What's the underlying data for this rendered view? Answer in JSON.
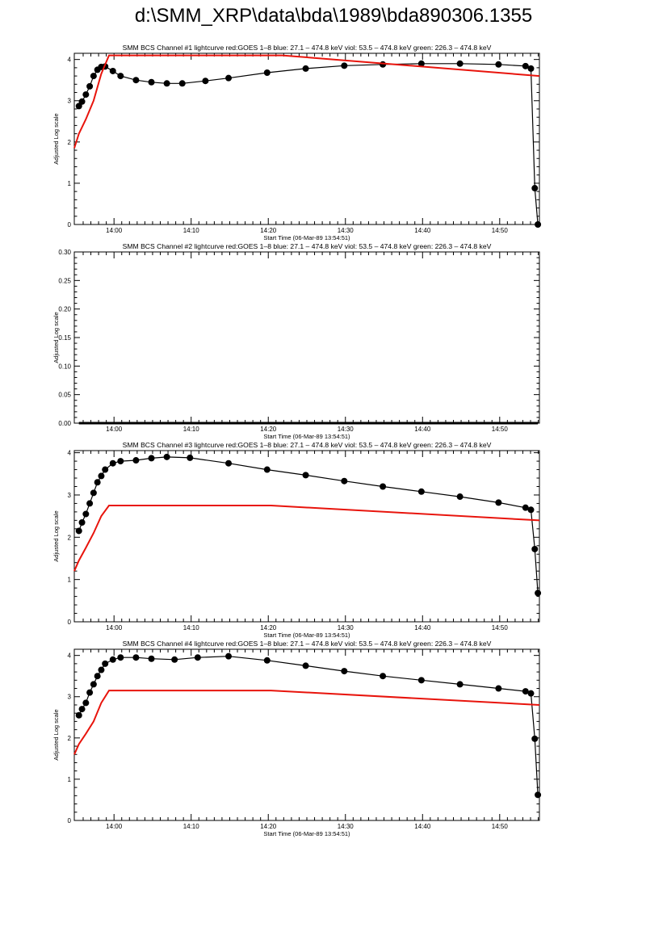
{
  "page_title": "d:\\SMM_XRP\\data\\bda\\1989\\bda890306.1355",
  "colors": {
    "background": "#ffffff",
    "axes": "#000000",
    "data": "#000000",
    "goes": "#e8140c"
  },
  "chart_data": [
    {
      "type": "scatter",
      "title": "SMM BCS Channel #1 lightcurve  red:GOES 1–8  blue: 27.1 – 474.8 keV  viol: 53.5 – 474.8 keV  green: 226.3 – 474.8 keV",
      "xlabel": "Start Time (06-Mar-89 13:54:51)",
      "ylabel": "Adjusted Log scale",
      "x_unit": "minutes after 13:54:51",
      "xlim": [
        0,
        60.3
      ],
      "ylim": [
        0,
        4.15
      ],
      "x_ticks": [
        "14:00",
        "14:10",
        "14:20",
        "14:30",
        "14:40",
        "14:50"
      ],
      "y_ticks": [
        "0",
        "1",
        "2",
        "3",
        "4"
      ],
      "series": [
        {
          "color": "black",
          "style": "dots",
          "x": [
            0.6,
            1,
            1.5,
            2,
            2.5,
            3,
            3.5,
            4,
            5,
            6,
            8,
            10,
            12,
            14,
            17,
            20,
            25,
            30,
            35,
            40,
            45,
            50,
            55,
            58.5,
            59.2,
            59.7,
            60.1
          ],
          "y": [
            2.87,
            2.98,
            3.15,
            3.35,
            3.6,
            3.75,
            3.82,
            3.83,
            3.72,
            3.6,
            3.5,
            3.45,
            3.42,
            3.42,
            3.48,
            3.55,
            3.68,
            3.78,
            3.85,
            3.88,
            3.9,
            3.9,
            3.88,
            3.84,
            3.78,
            0.88,
            0
          ]
        },
        {
          "color": "red",
          "style": "line",
          "x": [
            0,
            0.6,
            1.5,
            2.5,
            3.5,
            4.5,
            27,
            60.3
          ],
          "y": [
            1.85,
            2.2,
            2.55,
            3,
            3.65,
            4.1,
            4.1,
            3.6
          ]
        }
      ]
    },
    {
      "type": "scatter",
      "title": "SMM BCS Channel #2 lightcurve  red:GOES 1–8  blue: 27.1 – 474.8 keV  viol: 53.5 – 474.8 keV  green: 226.3 – 474.8 keV",
      "xlabel": "Start Time (06-Mar-89 13:54:51)",
      "ylabel": "Adjusted Log scale",
      "x_unit": "minutes after 13:54:51",
      "xlim": [
        0,
        60.3
      ],
      "ylim": [
        0,
        0.3
      ],
      "x_ticks": [
        "14:00",
        "14:10",
        "14:20",
        "14:30",
        "14:40",
        "14:50"
      ],
      "y_ticks": [
        "0.00",
        "0.05",
        "0.10",
        "0.15",
        "0.20",
        "0.25",
        "0.30"
      ],
      "series": [
        {
          "color": "black",
          "style": "baseline",
          "x": [
            0.6,
            60.1
          ],
          "y": [
            0,
            0
          ]
        }
      ]
    },
    {
      "type": "scatter",
      "title": "SMM BCS Channel #3 lightcurve  red:GOES 1–8  blue: 27.1 – 474.8 keV  viol: 53.5 – 474.8 keV  green: 226.3 – 474.8 keV",
      "xlabel": "Start Time (06-Mar-89 13:54:51)",
      "ylabel": "Adjusted Log scale",
      "x_unit": "minutes after 13:54:51",
      "xlim": [
        0,
        60.3
      ],
      "ylim": [
        0,
        4.05
      ],
      "x_ticks": [
        "14:00",
        "14:10",
        "14:20",
        "14:30",
        "14:40",
        "14:50"
      ],
      "y_ticks": [
        "0",
        "1",
        "2",
        "3",
        "4"
      ],
      "series": [
        {
          "color": "black",
          "style": "dots",
          "x": [
            0.6,
            1,
            1.5,
            2,
            2.5,
            3,
            3.5,
            4,
            5,
            6,
            8,
            10,
            12,
            15,
            20,
            25,
            30,
            35,
            40,
            45,
            50,
            55,
            58.5,
            59.2,
            59.7,
            60.1
          ],
          "y": [
            2.15,
            2.35,
            2.55,
            2.8,
            3.05,
            3.3,
            3.45,
            3.6,
            3.75,
            3.8,
            3.82,
            3.87,
            3.9,
            3.88,
            3.75,
            3.6,
            3.47,
            3.33,
            3.2,
            3.08,
            2.96,
            2.82,
            2.7,
            2.65,
            1.72,
            0.68
          ]
        },
        {
          "color": "red",
          "style": "line",
          "x": [
            0,
            0.6,
            1.5,
            2.5,
            3.5,
            4.5,
            25.5,
            60.3
          ],
          "y": [
            1.2,
            1.45,
            1.75,
            2.1,
            2.5,
            2.75,
            2.75,
            2.4
          ]
        }
      ]
    },
    {
      "type": "scatter",
      "title": "SMM BCS Channel #4 lightcurve  red:GOES 1–8  blue: 27.1 – 474.8 keV  viol: 53.5 – 474.8 keV  green: 226.3 – 474.8 keV",
      "xlabel": "Start Time (06-Mar-89 13:54:51)",
      "ylabel": "Adjusted Log scale",
      "x_unit": "minutes after 13:54:51",
      "xlim": [
        0,
        60.3
      ],
      "ylim": [
        0,
        4.15
      ],
      "x_ticks": [
        "14:00",
        "14:10",
        "14:20",
        "14:30",
        "14:40",
        "14:50"
      ],
      "y_ticks": [
        "0",
        "1",
        "2",
        "3",
        "4"
      ],
      "series": [
        {
          "color": "black",
          "style": "dots",
          "x": [
            0.6,
            1,
            1.5,
            2,
            2.5,
            3,
            3.5,
            4,
            5,
            6,
            8,
            10,
            13,
            16,
            20,
            25,
            30,
            35,
            40,
            45,
            50,
            55,
            58.5,
            59.2,
            59.7,
            60.1
          ],
          "y": [
            2.55,
            2.7,
            2.85,
            3.1,
            3.3,
            3.5,
            3.65,
            3.8,
            3.9,
            3.95,
            3.95,
            3.92,
            3.9,
            3.95,
            3.98,
            3.88,
            3.75,
            3.62,
            3.5,
            3.4,
            3.3,
            3.2,
            3.13,
            3.08,
            1.98,
            0.62
          ]
        },
        {
          "color": "red",
          "style": "line",
          "x": [
            0,
            0.6,
            1.5,
            2.5,
            3.5,
            4.5,
            25.5,
            60.3
          ],
          "y": [
            1.6,
            1.85,
            2.1,
            2.4,
            2.85,
            3.15,
            3.15,
            2.8
          ]
        }
      ]
    }
  ]
}
